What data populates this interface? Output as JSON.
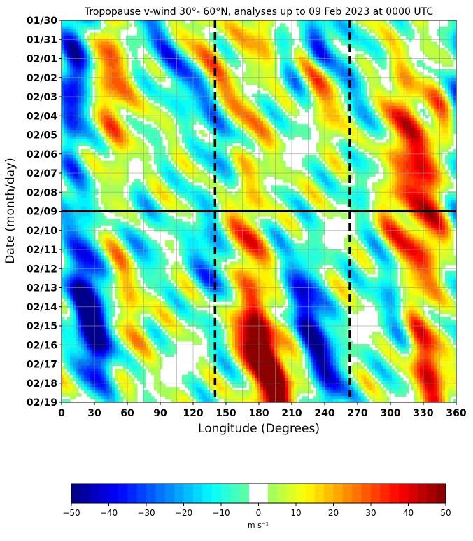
{
  "chart_data": {
    "type": "heatmap",
    "title": "Tropopause v-wind 30°- 60°N, analyses up to 09 Feb 2023 at 0000 UTC",
    "xlabel": "Longitude (Degrees)",
    "ylabel": "Date (month/day)",
    "xlim": [
      0,
      360
    ],
    "x_ticks": [
      0,
      30,
      60,
      90,
      120,
      150,
      180,
      210,
      240,
      270,
      300,
      330,
      360
    ],
    "y_ticks": [
      "01/30",
      "01/31",
      "02/01",
      "02/02",
      "02/03",
      "02/04",
      "02/05",
      "02/06",
      "02/07",
      "02/08",
      "02/09",
      "02/10",
      "02/11",
      "02/12",
      "02/13",
      "02/14",
      "02/15",
      "02/16",
      "02/17",
      "02/18",
      "02/19"
    ],
    "grid": true,
    "analysis_line_date": "02/09",
    "reference_longitudes": [
      140,
      263
    ],
    "colorbar": {
      "ticks": [
        -50,
        -40,
        -30,
        -20,
        -10,
        0,
        10,
        20,
        30,
        40,
        50
      ],
      "unit": "m s⁻¹",
      "range": [
        -50,
        50
      ],
      "step": 2.5,
      "masked_range": [
        -2.5,
        2.5
      ]
    },
    "wave_packets": [
      {
        "amp": -40,
        "lon_start": 15,
        "date_start": 0.0,
        "lon_per_day": -1.5,
        "duration": 7.0
      },
      {
        "amp": 28,
        "lon_start": 40,
        "date_start": 0.5,
        "lon_per_day": 2.0,
        "duration": 5.0
      },
      {
        "amp": -30,
        "lon_start": 75,
        "date_start": 0.0,
        "lon_per_day": 12.0,
        "duration": 6.0
      },
      {
        "amp": 20,
        "lon_start": 120,
        "date_start": 0.5,
        "lon_per_day": 10.0,
        "duration": 6.0
      },
      {
        "amp": 32,
        "lon_start": 172,
        "date_start": 0.0,
        "lon_per_day": 10.0,
        "duration": 4.0
      },
      {
        "amp": -38,
        "lon_start": 200,
        "date_start": 1.5,
        "lon_per_day": 5.0,
        "duration": 3.0
      },
      {
        "amp": 38,
        "lon_start": 222,
        "date_start": 2.0,
        "lon_per_day": 10.0,
        "duration": 7.0
      },
      {
        "amp": -40,
        "lon_start": 230,
        "date_start": 0.0,
        "lon_per_day": 2.0,
        "duration": 2.0
      },
      {
        "amp": -35,
        "lon_start": 258,
        "date_start": 4.0,
        "lon_per_day": 5.0,
        "duration": 6.0
      },
      {
        "amp": 45,
        "lon_start": 310,
        "date_start": 5.0,
        "lon_per_day": 5.0,
        "duration": 6.0
      },
      {
        "amp": 28,
        "lon_start": 345,
        "date_start": 4.0,
        "lon_per_day": 3.0,
        "duration": 3.0
      },
      {
        "amp": -30,
        "lon_start": 15,
        "date_start": 11.5,
        "lon_per_day": 2.0,
        "duration": 6.0
      },
      {
        "amp": -35,
        "lon_start": 25,
        "date_start": 14.0,
        "lon_per_day": 3.0,
        "duration": 4.0
      },
      {
        "amp": 22,
        "lon_start": 55,
        "date_start": 11.0,
        "lon_per_day": 2.0,
        "duration": 5.0
      },
      {
        "amp": -25,
        "lon_start": 65,
        "date_start": 10.0,
        "lon_per_day": 3.0,
        "duration": 3.0
      },
      {
        "amp": -30,
        "lon_start": 130,
        "date_start": 11.5,
        "lon_per_day": 5.0,
        "duration": 4.0
      },
      {
        "amp": 32,
        "lon_start": 162,
        "date_start": 10.5,
        "lon_per_day": 10.0,
        "duration": 5.0
      },
      {
        "amp": -35,
        "lon_start": 190,
        "date_start": 12.5,
        "lon_per_day": 10.0,
        "duration": 3.0
      },
      {
        "amp": 45,
        "lon_start": 175,
        "date_start": 15.5,
        "lon_per_day": 4.0,
        "duration": 6.0
      },
      {
        "amp": -45,
        "lon_start": 222,
        "date_start": 14.5,
        "lon_per_day": 5.0,
        "duration": 5.0
      },
      {
        "amp": 38,
        "lon_start": 152,
        "date_start": 15.0,
        "lon_per_day": 12.0,
        "duration": 4.0
      },
      {
        "amp": -30,
        "lon_start": 300,
        "date_start": 12.5,
        "lon_per_day": 3.0,
        "duration": 4.0
      },
      {
        "amp": 42,
        "lon_start": 320,
        "date_start": 15.5,
        "lon_per_day": 5.0,
        "duration": 5.0
      },
      {
        "amp": 35,
        "lon_start": 300,
        "date_start": 10.0,
        "lon_per_day": 5.0,
        "duration": 3.0
      }
    ]
  }
}
